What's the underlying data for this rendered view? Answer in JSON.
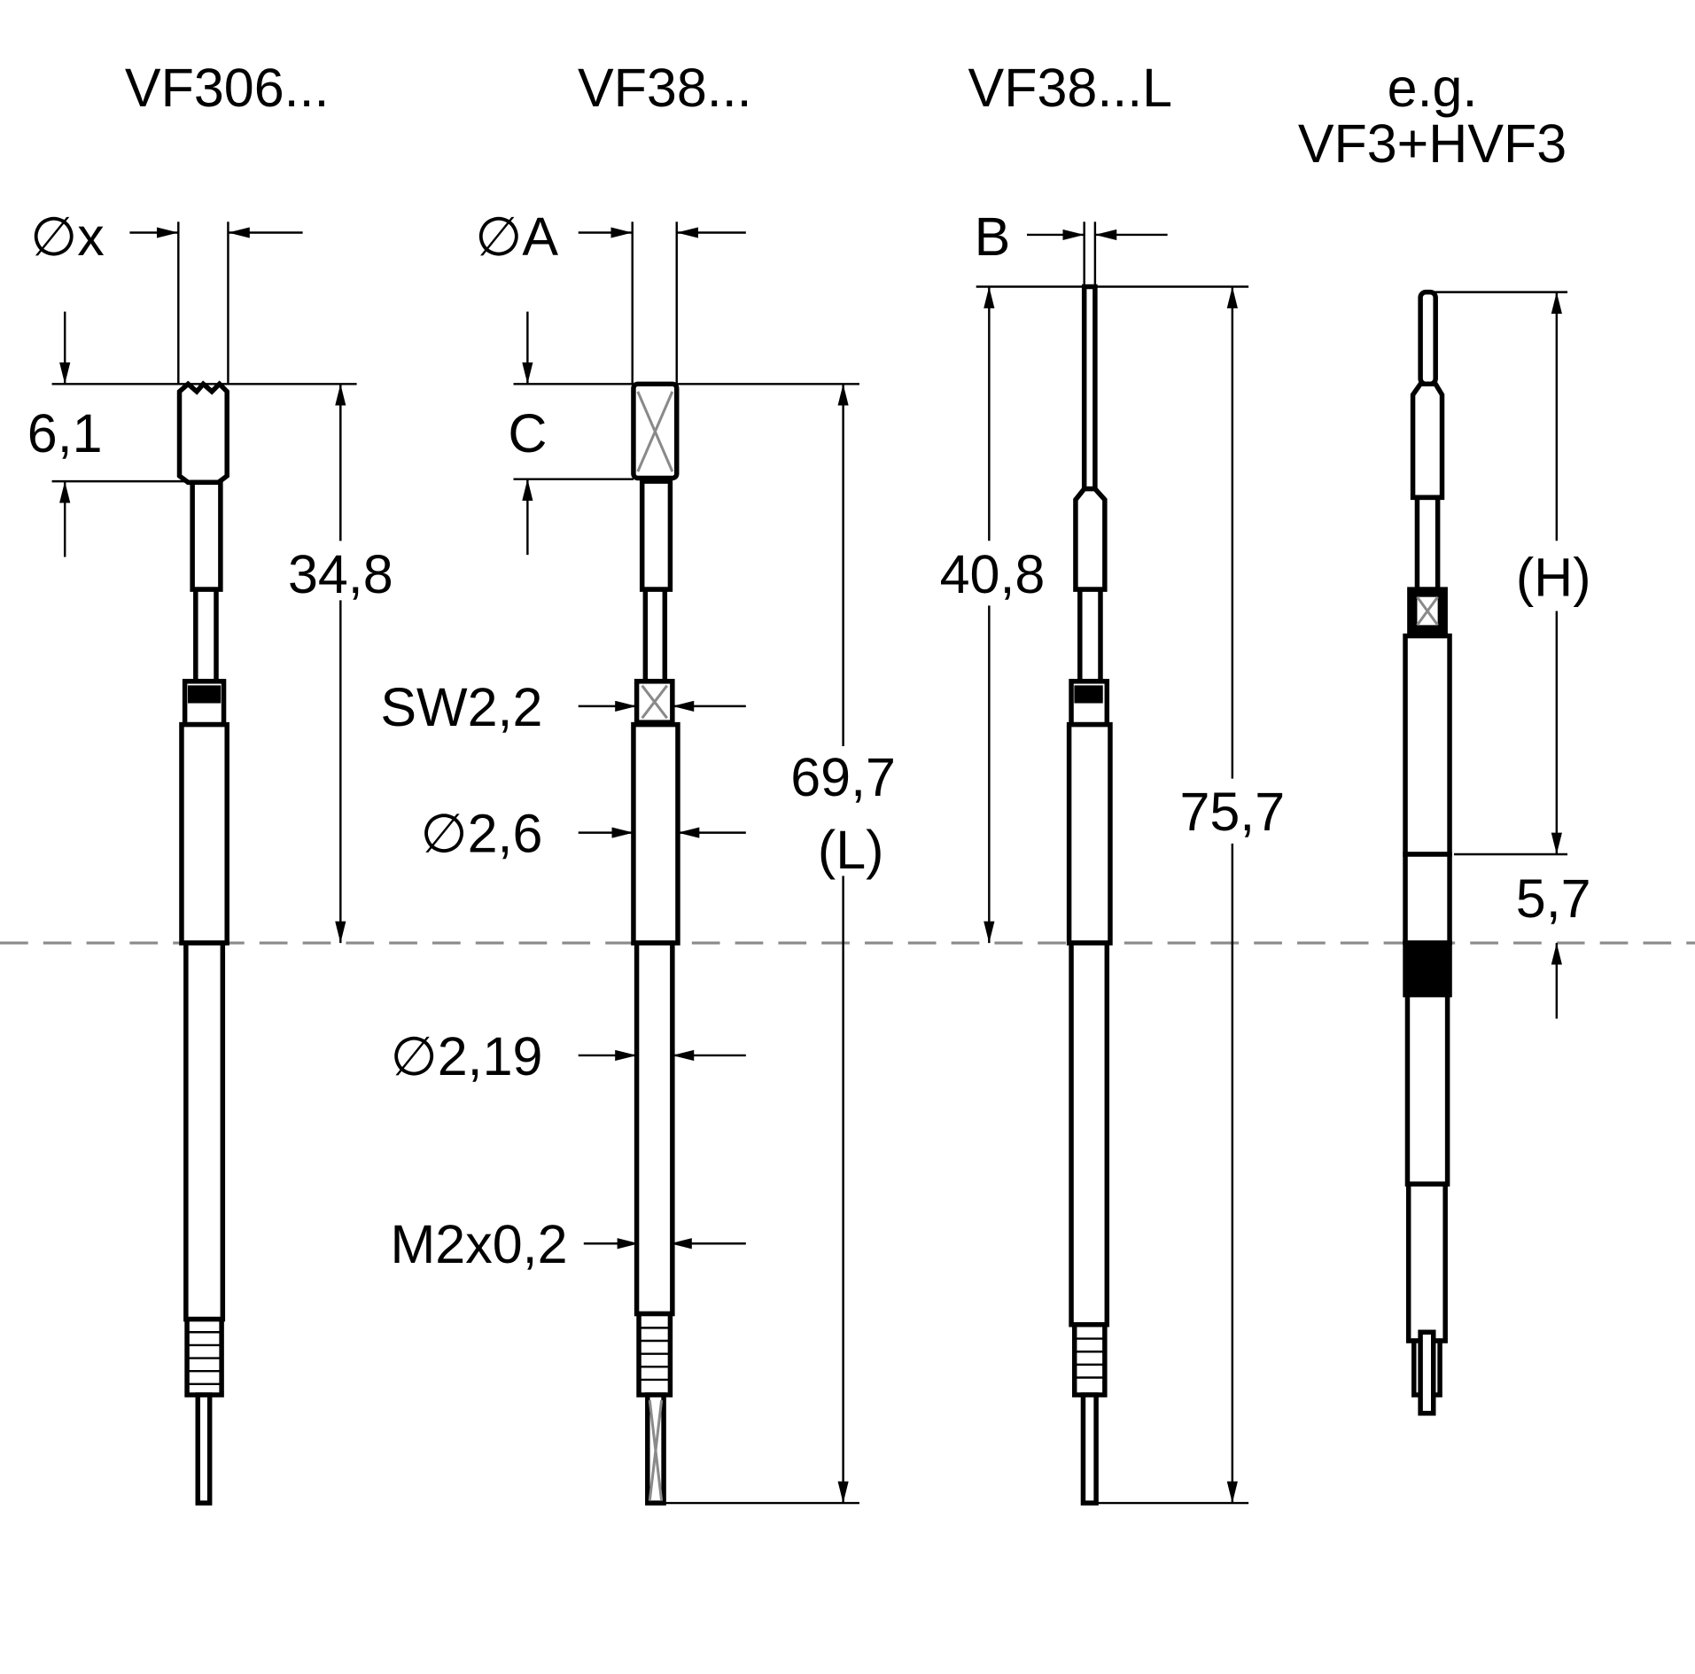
{
  "titles": {
    "vf306": "VF306...",
    "vf38": "VF38...",
    "vf38l": "VF38...L",
    "eg": "e.g.",
    "vf3hvf3": "VF3+HVF3"
  },
  "dimensions": {
    "dia_x": "∅x",
    "dia_a": "∅A",
    "b": "B",
    "c": "C",
    "d61": "6,1",
    "d348": "34,8",
    "sw": "SW2,2",
    "dia26": "∅2,6",
    "dia219": "∅2,19",
    "thread": "M2x0,2",
    "d697": "69,7",
    "l": "(L)",
    "d408": "40,8",
    "d757": "75,7",
    "h": "(H)",
    "d57": "5,7"
  },
  "colors": {
    "lines": "#000000",
    "centerline": "#8a8a8a"
  }
}
